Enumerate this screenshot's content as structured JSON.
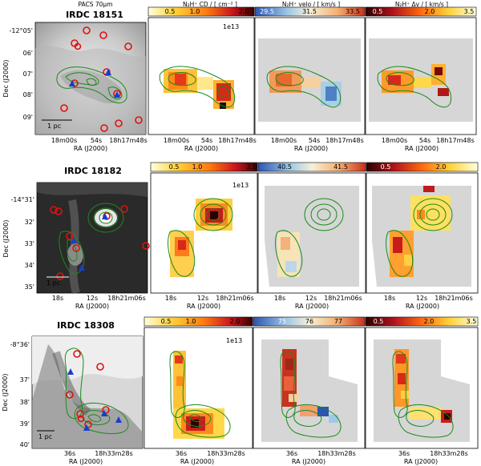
{
  "figure": {
    "header_labels": {
      "pacs": "PACS 70μm",
      "cd": "N₂H⁺ CD / [ cm⁻² ]",
      "velo": "N₂H⁺ velo / [ km/s ]",
      "dv": "N₂H⁺ Δv / [ km/s ]"
    },
    "rows": [
      {
        "title": "IRDC 18151",
        "ra_label": "RA (J2000)",
        "dec_label": "Dec (J2000)",
        "scale_label": "1 pc",
        "multiplier": "1e13",
        "ra_ticks": [
          "18m00s",
          "54s",
          "18h17m48s"
        ],
        "dec_ticks": [
          "-12°05'",
          "06'",
          "07'",
          "08'",
          "09'"
        ],
        "cd_ticks": [
          "0.5",
          "1.0",
          "2.0"
        ],
        "velo_ticks": [
          "29.5",
          "31.5",
          "33.5"
        ],
        "dv_ticks": [
          "0.5",
          "2.0",
          "3.5"
        ]
      },
      {
        "title": "IRDC 18182",
        "ra_label": "RA (J2000)",
        "dec_label": "Dec (J2000)",
        "scale_label": "1 pc",
        "multiplier": "1e13",
        "ra_ticks": [
          "18s",
          "12s",
          "18h21m06s"
        ],
        "dec_ticks": [
          "-14°31'",
          "32'",
          "33'",
          "34'",
          "35'"
        ],
        "cd_ticks": [
          "0.5",
          "1.0",
          "2.0"
        ],
        "velo_ticks": [
          "40.5",
          "41.5"
        ],
        "dv_ticks": [
          "0.5",
          "2.0"
        ]
      },
      {
        "title": "IRDC 18308",
        "ra_label": "RA (J2000)",
        "dec_label": "Dec (J2000)",
        "scale_label": "1 pc",
        "multiplier": "1e13",
        "ra_ticks": [
          "36s",
          "18h33m28s"
        ],
        "dec_ticks": [
          "-8°36'",
          "37'",
          "38'",
          "39'",
          "40'"
        ],
        "cd_ticks": [
          "0.5",
          "1.0",
          "2.0"
        ],
        "velo_ticks": [
          "75",
          "76",
          "77"
        ],
        "dv_ticks": [
          "0.5",
          "2.0",
          "3.5"
        ]
      }
    ]
  }
}
